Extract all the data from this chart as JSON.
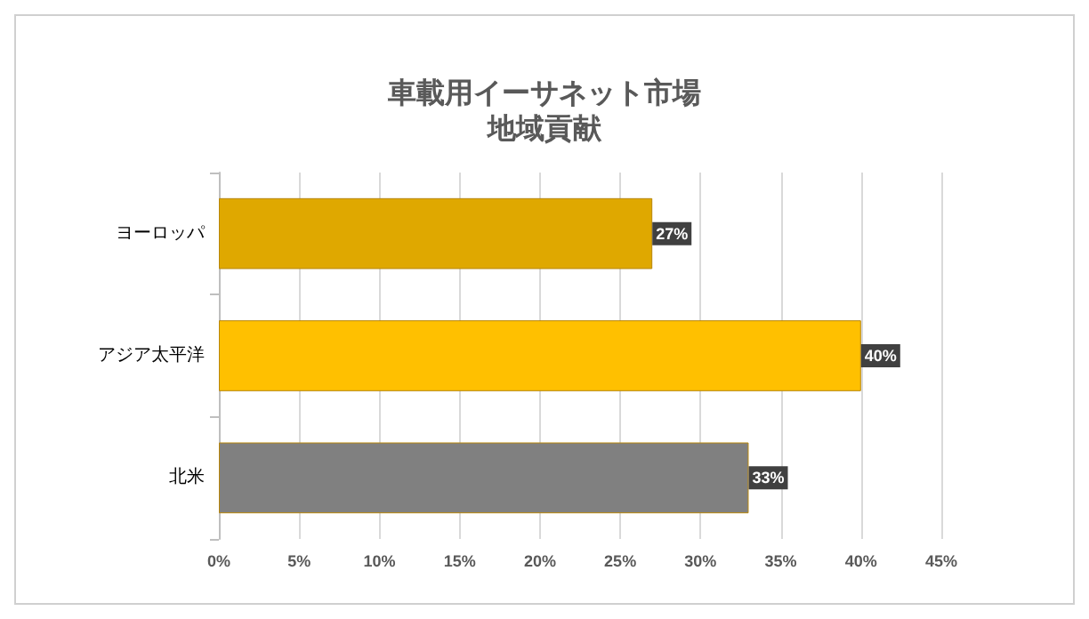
{
  "chart_data": {
    "type": "bar",
    "orientation": "horizontal",
    "title": "車載用イーサネット市場",
    "subtitle": "地域貢献",
    "categories": [
      "ヨーロッパ",
      "アジア太平洋",
      "北米"
    ],
    "values": [
      27,
      40,
      33
    ],
    "colors": [
      "#dfa800",
      "#ffc000",
      "#808080"
    ],
    "value_labels": [
      "27%",
      "40%",
      "33%"
    ],
    "xlim": [
      0,
      45
    ],
    "xticks": [
      {
        "value": 0,
        "label": "0%"
      },
      {
        "value": 5,
        "label": "5%"
      },
      {
        "value": 10,
        "label": "10%"
      },
      {
        "value": 15,
        "label": "15%"
      },
      {
        "value": 20,
        "label": "20%"
      },
      {
        "value": 25,
        "label": "25%"
      },
      {
        "value": 30,
        "label": "30%"
      },
      {
        "value": 35,
        "label": "35%"
      },
      {
        "value": 40,
        "label": "40%"
      },
      {
        "value": 45,
        "label": "45%"
      }
    ],
    "grid": "x"
  }
}
